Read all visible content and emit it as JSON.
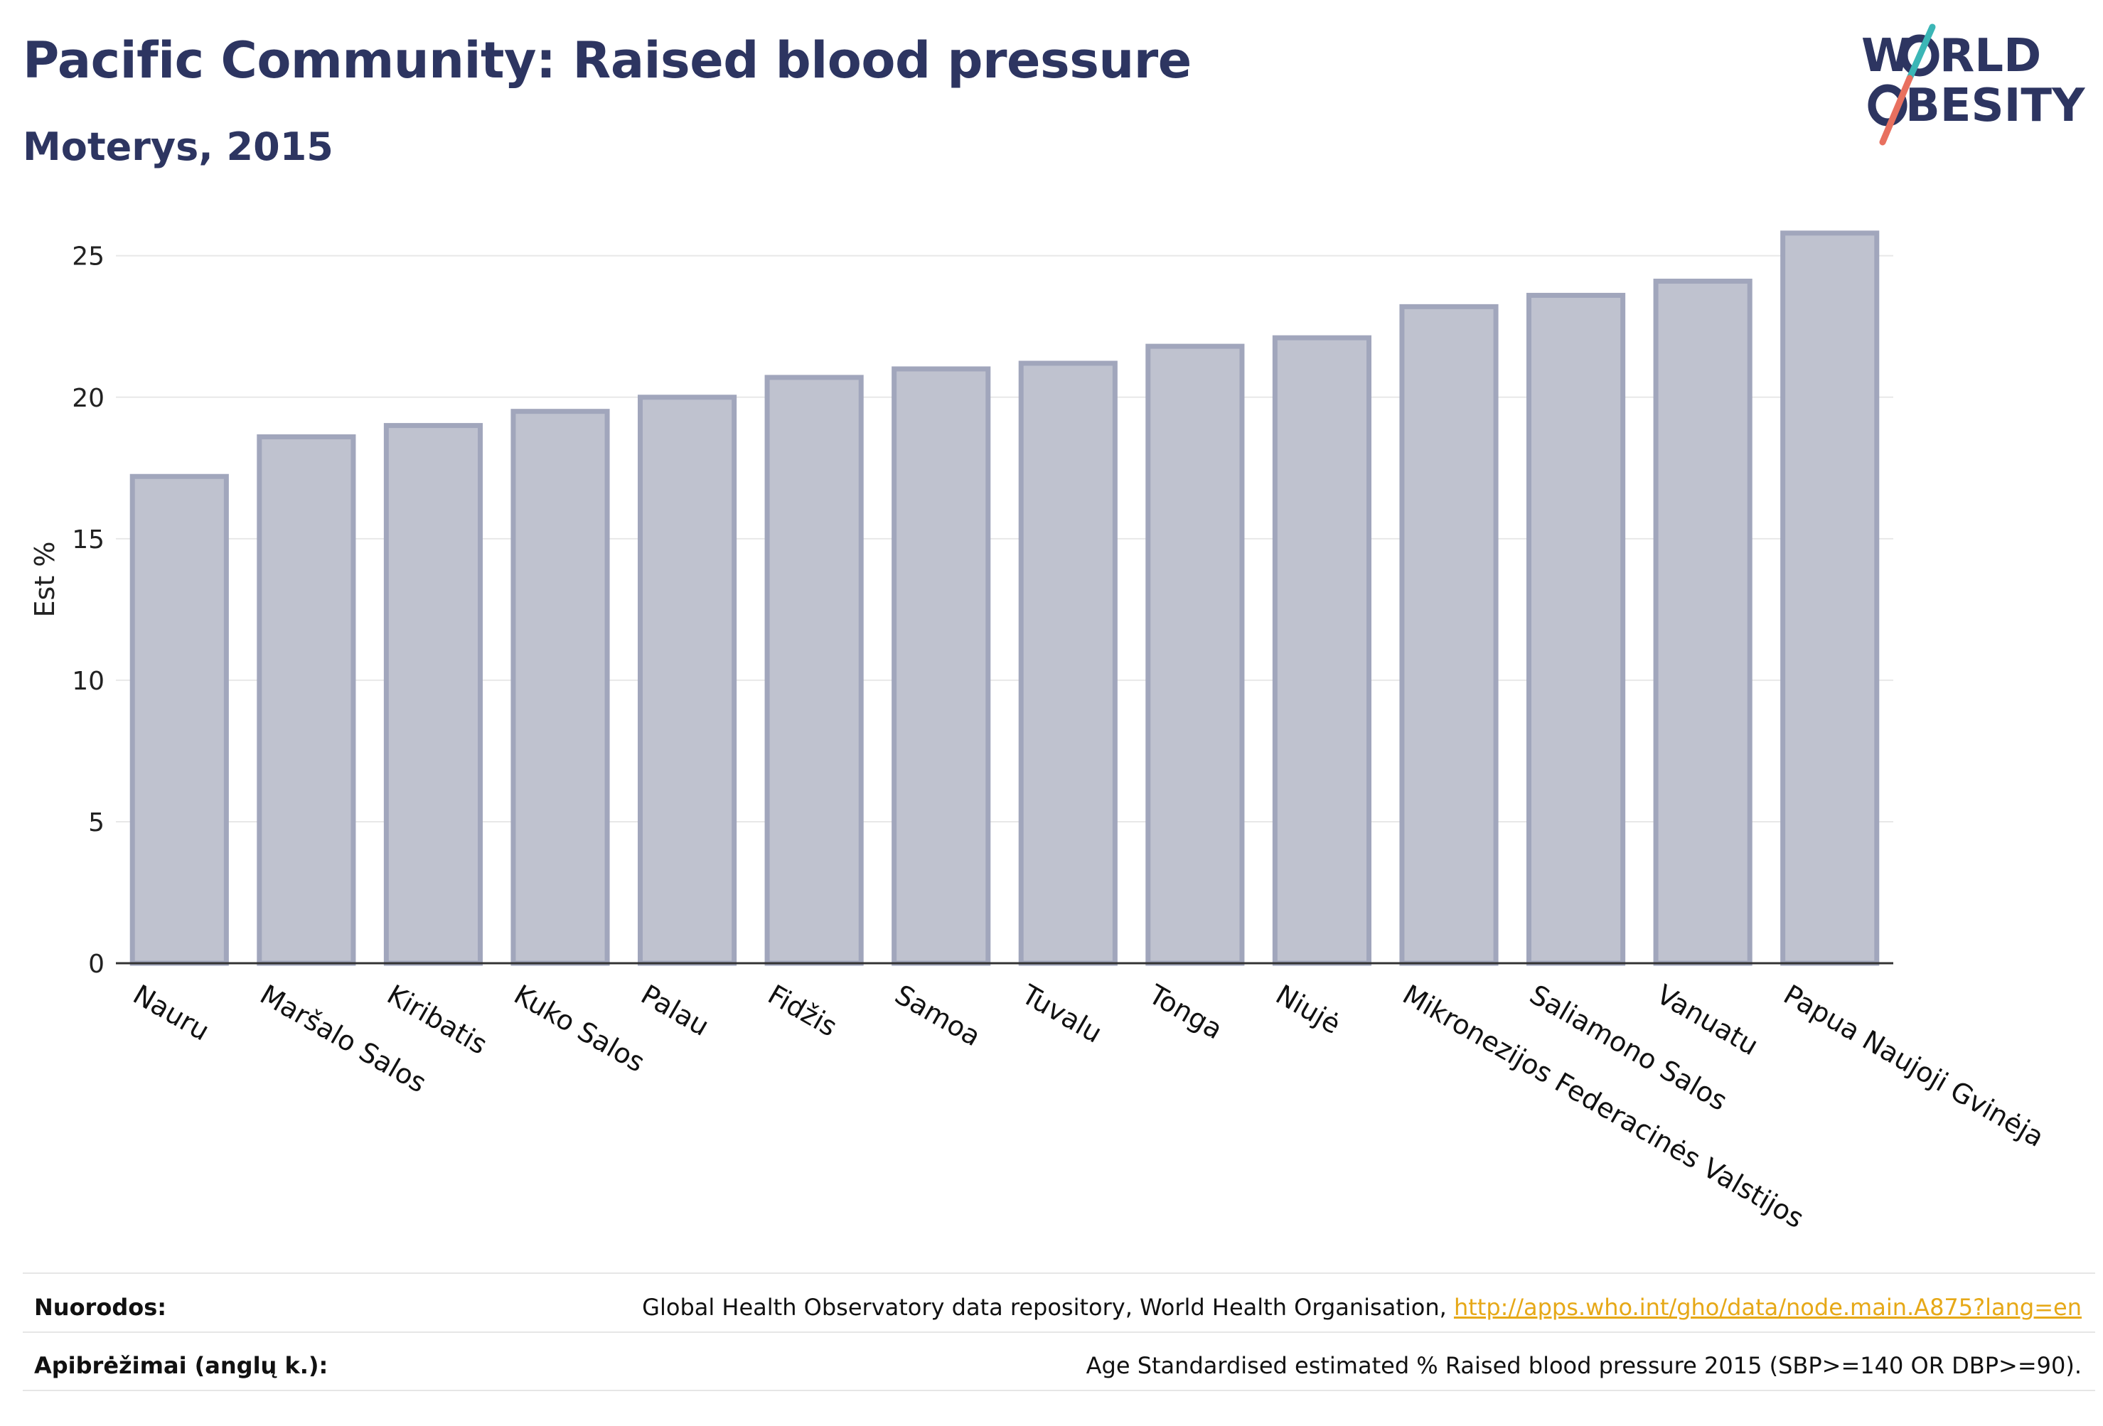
{
  "header": {
    "title": "Pacific Community: Raised blood pressure",
    "subtitle": "Moterys, 2015"
  },
  "logo": {
    "line1": "W",
    "line1b": "RLD",
    "line2": "BESITY",
    "text_color": "#2d3561",
    "slash_teal": "#3bb6b6",
    "slash_coral": "#e8705f"
  },
  "chart_data": {
    "type": "bar",
    "title": "",
    "xlabel": "",
    "ylabel": "Est %",
    "ylim": [
      0,
      26.5
    ],
    "yticks": [
      0,
      5,
      10,
      15,
      20,
      25
    ],
    "grid": true,
    "bar_fill": "#bfc2cf",
    "bar_stroke": "#a1a6bc",
    "categories": [
      "Nauru",
      "Maršalo Salos",
      "Kiribatis",
      "Kuko Salos",
      "Palau",
      "Fidžis",
      "Samoa",
      "Tuvalu",
      "Tonga",
      "Niujė",
      "Mikronezijos Federacinės Valstijos",
      "Saliamono Salos",
      "Vanuatu",
      "Papua Naujoji Gvinėja"
    ],
    "values": [
      17.2,
      18.6,
      19.0,
      19.5,
      20.0,
      20.7,
      21.0,
      21.2,
      21.8,
      22.1,
      23.2,
      23.6,
      24.1,
      25.8
    ]
  },
  "footer": {
    "sources_label": "Nuorodos:",
    "sources_text": "Global Health Observatory data repository, World Health Organisation, ",
    "sources_link": "http://apps.who.int/gho/data/node.main.A875?lang=en",
    "definitions_label": "Apibrėžimai (anglų k.):",
    "definitions_text": "Age Standardised estimated % Raised blood pressure 2015 (SBP>=140 OR DBP>=90)."
  }
}
